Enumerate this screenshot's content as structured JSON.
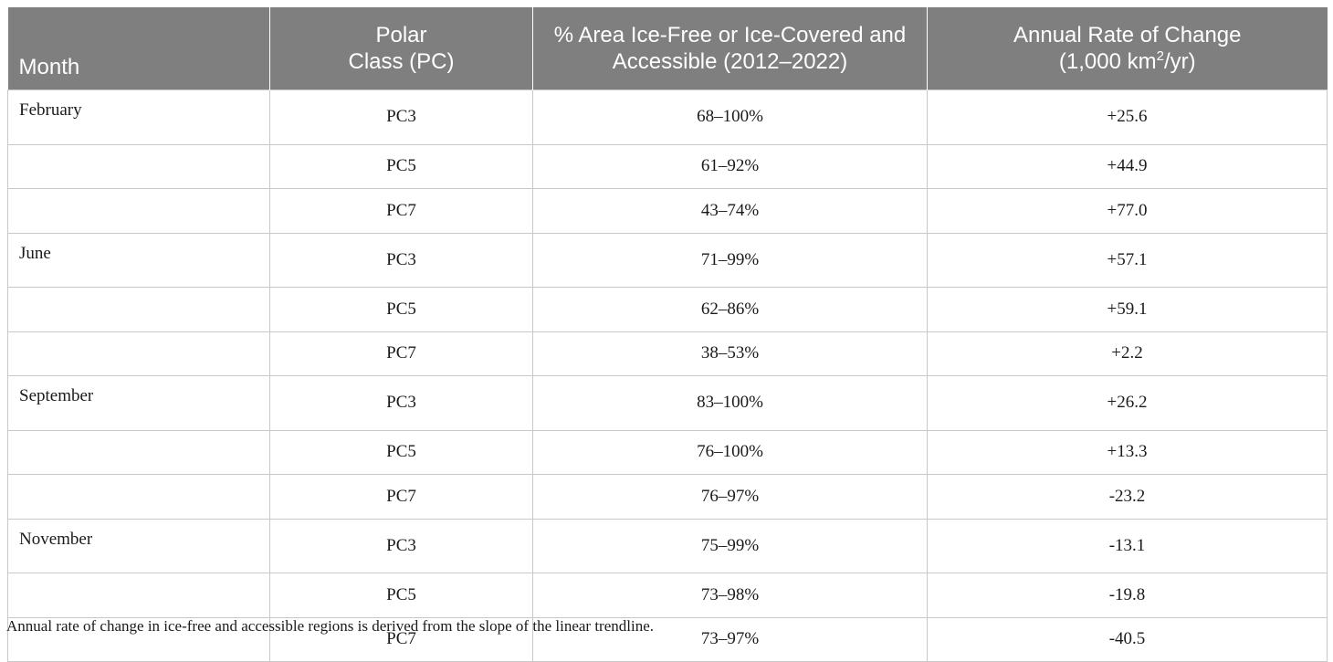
{
  "table": {
    "headers": {
      "month": "Month",
      "polar_class_line1": "Polar",
      "polar_class_line2": "Class (PC)",
      "area_line1": "% Area Ice-Free or Ice-Covered and",
      "area_line2": "Accessible (2012–2022)",
      "rate_line1": "Annual Rate of Change",
      "rate_line2_pre": "(1,000 km",
      "rate_line2_sup": "2",
      "rate_line2_post": "/yr)"
    },
    "rows": [
      {
        "month": "February",
        "polar_class": "PC3",
        "area": "68–100%",
        "rate": "+25.6"
      },
      {
        "month": "",
        "polar_class": "PC5",
        "area": "61–92%",
        "rate": "+44.9"
      },
      {
        "month": "",
        "polar_class": "PC7",
        "area": "43–74%",
        "rate": "+77.0"
      },
      {
        "month": "June",
        "polar_class": "PC3",
        "area": "71–99%",
        "rate": "+57.1"
      },
      {
        "month": "",
        "polar_class": "PC5",
        "area": "62–86%",
        "rate": "+59.1"
      },
      {
        "month": "",
        "polar_class": "PC7",
        "area": "38–53%",
        "rate": "+2.2"
      },
      {
        "month": "September",
        "polar_class": "PC3",
        "area": "83–100%",
        "rate": "+26.2"
      },
      {
        "month": "",
        "polar_class": "PC5",
        "area": "76–100%",
        "rate": "+13.3"
      },
      {
        "month": "",
        "polar_class": "PC7",
        "area": "76–97%",
        "rate": "-23.2"
      },
      {
        "month": "November",
        "polar_class": "PC3",
        "area": "75–99%",
        "rate": "-13.1"
      },
      {
        "month": "",
        "polar_class": "PC5",
        "area": "73–98%",
        "rate": "-19.8"
      },
      {
        "month": "",
        "polar_class": "PC7",
        "area": "73–97%",
        "rate": "-40.5"
      }
    ]
  },
  "footnote": "Annual rate of change in ice-free and accessible regions is derived from the slope of the linear trendline.",
  "colors": {
    "header_bg": "#7f7f7f",
    "header_text": "#ffffff",
    "border": "#c8c8c8"
  }
}
